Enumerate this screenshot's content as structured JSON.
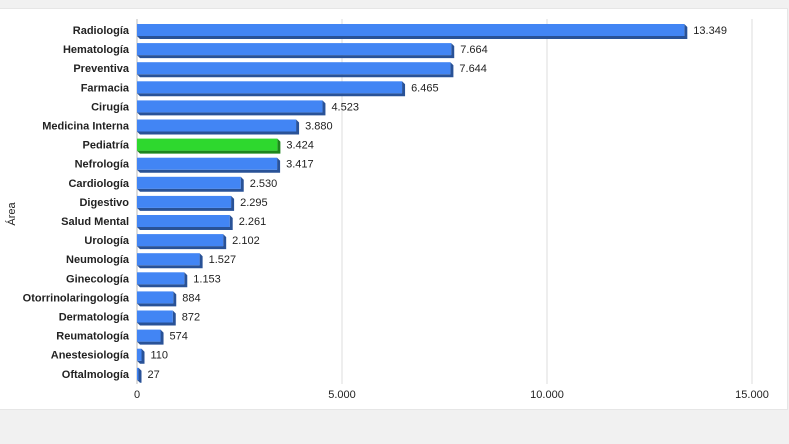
{
  "chart_data": {
    "type": "bar",
    "orientation": "horizontal",
    "ylabel": "Área",
    "xlabel": "",
    "xlim": [
      0,
      15000
    ],
    "xticks": [
      0,
      5000,
      10000,
      15000
    ],
    "xtick_labels": [
      "0",
      "5.000",
      "10.000",
      "15.000"
    ],
    "grid": true,
    "bar_color": "#4285f4",
    "highlight_color": "#2ed82e",
    "highlight_category": "Pediatría",
    "categories": [
      "Radiología",
      "Hematología",
      "Preventiva",
      "Farmacia",
      "Cirugía",
      "Medicina Interna",
      "Pediatría",
      "Nefrología",
      "Cardiología",
      "Digestivo",
      "Salud Mental",
      "Urología",
      "Neumología",
      "Ginecología",
      "Otorrinolaringología",
      "Dermatología",
      "Reumatología",
      "Anestesiología",
      "Oftalmología"
    ],
    "values": [
      13349,
      7664,
      7644,
      6465,
      4523,
      3880,
      3424,
      3417,
      2530,
      2295,
      2261,
      2102,
      1527,
      1153,
      884,
      872,
      574,
      110,
      27
    ],
    "value_labels": [
      "13.349",
      "7.664",
      "7.644",
      "6.465",
      "4.523",
      "3.880",
      "3.424",
      "3.417",
      "2.530",
      "2.295",
      "2.261",
      "2.102",
      "1.527",
      "1.153",
      "884",
      "872",
      "574",
      "110",
      "27"
    ]
  }
}
